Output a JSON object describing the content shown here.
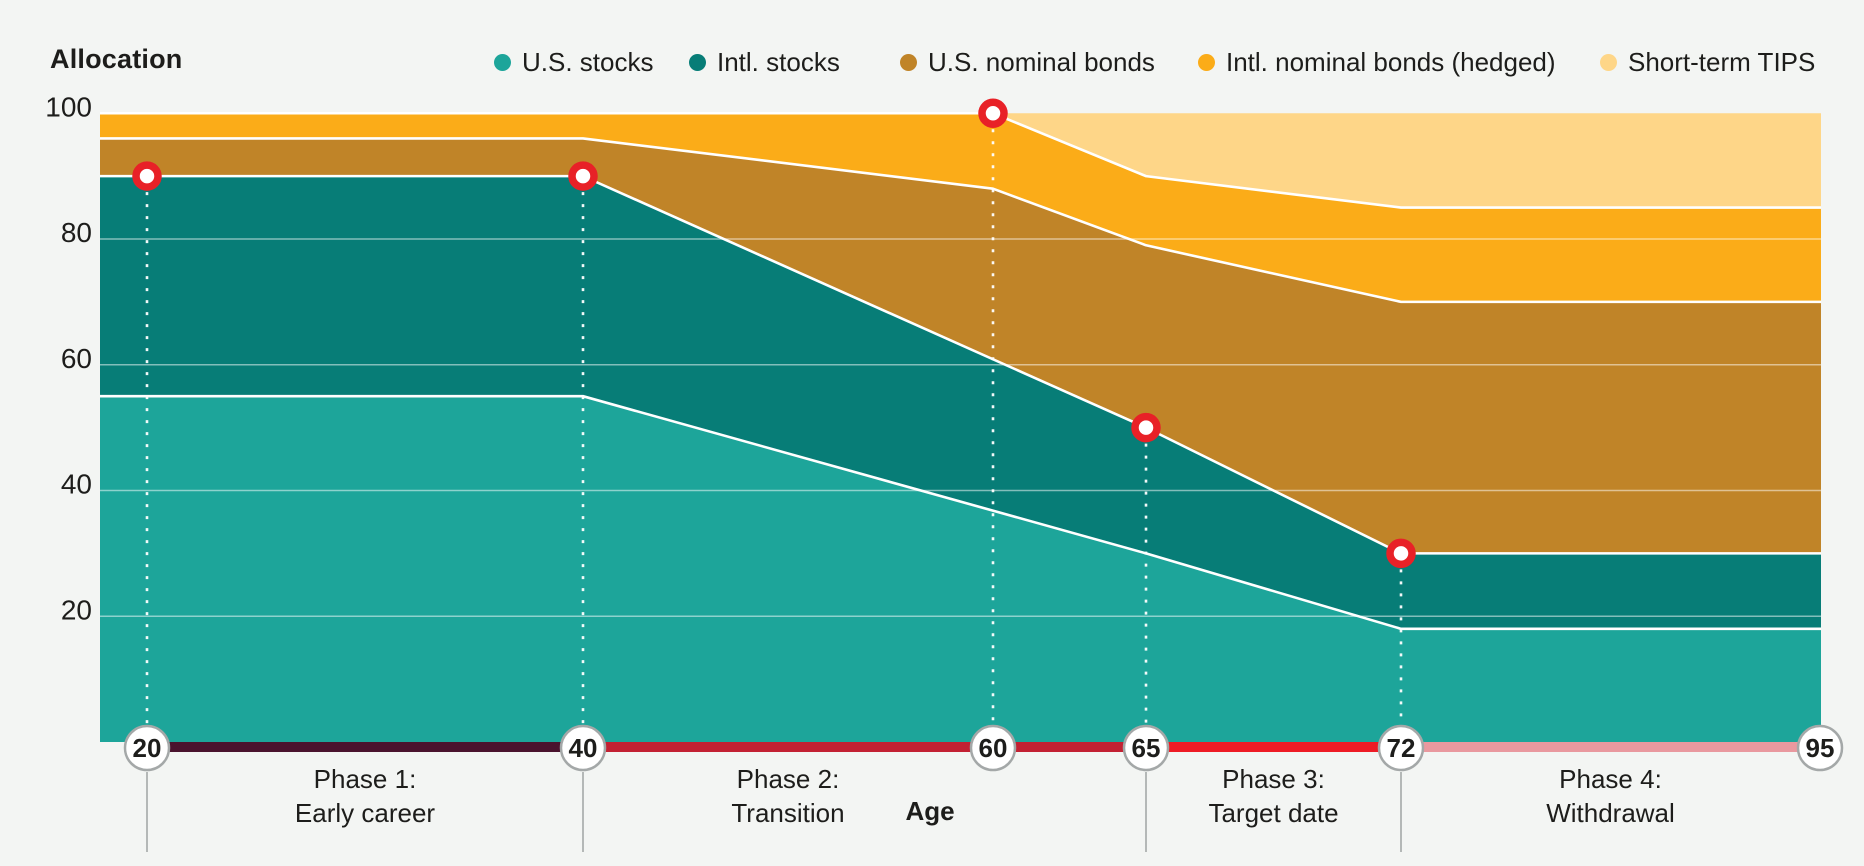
{
  "header": {
    "title": "Allocation"
  },
  "axis": {
    "x_label": "Age",
    "y_ticks": [
      100,
      80,
      60,
      40,
      20
    ],
    "x_circles": [
      "20",
      "40",
      "60",
      "65",
      "72",
      "95"
    ]
  },
  "legend": [
    {
      "label": "U.S. stocks",
      "color": "#1da59a"
    },
    {
      "label": "Intl. stocks",
      "color": "#077d77"
    },
    {
      "label": "U.S. nominal bonds",
      "color": "#c08428"
    },
    {
      "label": "Intl. nominal bonds (hedged)",
      "color": "#fbac18"
    },
    {
      "label": "Short-term TIPS",
      "color": "#fed688"
    }
  ],
  "chart_data": {
    "type": "area",
    "stacked": true,
    "title": "Allocation",
    "xlabel": "Age",
    "ylim": [
      0,
      100
    ],
    "x_ages": [
      20,
      40,
      60,
      65,
      72,
      95
    ],
    "grid": true,
    "legend_position": "top",
    "series": [
      {
        "name": "U.S. stocks",
        "color": "#1da59a",
        "top_boundary": [
          [
            "start",
            55
          ],
          [
            40,
            55
          ],
          [
            65,
            30
          ],
          [
            72,
            18
          ],
          [
            "end",
            18
          ]
        ]
      },
      {
        "name": "Intl. stocks",
        "color": "#077d77",
        "top_boundary": [
          [
            "start",
            90
          ],
          [
            40,
            90
          ],
          [
            65,
            50
          ],
          [
            72,
            30
          ],
          [
            "end",
            30
          ]
        ]
      },
      {
        "name": "U.S. nominal bonds",
        "color": "#c08428",
        "top_boundary": [
          [
            "start",
            96
          ],
          [
            40,
            96
          ],
          [
            60,
            88
          ],
          [
            65,
            79
          ],
          [
            72,
            70
          ],
          [
            "end",
            70
          ]
        ]
      },
      {
        "name": "Intl. nominal bonds (hedged)",
        "color": "#fbac18",
        "top_boundary": [
          [
            "start",
            100
          ],
          [
            60,
            100
          ],
          [
            65,
            90
          ],
          [
            72,
            85
          ],
          [
            "end",
            85
          ]
        ]
      },
      {
        "name": "Short-term TIPS",
        "color": "#fed688",
        "top_boundary": [
          [
            "start",
            100
          ],
          [
            "end",
            100
          ]
        ]
      }
    ],
    "allocations_by_age": {
      "20": {
        "us_stocks": 55,
        "intl_stocks": 35,
        "us_nominal_bonds": 6,
        "intl_nominal_bonds": 4,
        "short_term_tips": 0
      },
      "40": {
        "us_stocks": 55,
        "intl_stocks": 35,
        "us_nominal_bonds": 6,
        "intl_nominal_bonds": 4,
        "short_term_tips": 0
      },
      "60": {
        "us_stocks": 38,
        "intl_stocks": 22,
        "us_nominal_bonds": 28,
        "intl_nominal_bonds": 12,
        "short_term_tips": 0
      },
      "65": {
        "us_stocks": 30,
        "intl_stocks": 20,
        "us_nominal_bonds": 29,
        "intl_nominal_bonds": 11,
        "short_term_tips": 10
      },
      "72": {
        "us_stocks": 18,
        "intl_stocks": 12,
        "us_nominal_bonds": 40,
        "intl_nominal_bonds": 15,
        "short_term_tips": 15
      },
      "95": {
        "us_stocks": 18,
        "intl_stocks": 12,
        "us_nominal_bonds": 40,
        "intl_nominal_bonds": 15,
        "short_term_tips": 15
      }
    },
    "markers": [
      {
        "age": 20,
        "value": 90
      },
      {
        "age": 40,
        "value": 90
      },
      {
        "age": 60,
        "value": 100
      },
      {
        "age": 65,
        "value": 50
      },
      {
        "age": 72,
        "value": 30
      }
    ],
    "phases": [
      {
        "line1": "Phase 1:",
        "line2": "Early career",
        "label_from": 20,
        "label_to": 40,
        "bar_from": 20,
        "bar_to": 40,
        "bar_color": "#4a132e"
      },
      {
        "line1": "Phase 2:",
        "line2": "Transition",
        "label_from": 40,
        "label_to": 60,
        "bar_from": 40,
        "bar_to": 65,
        "bar_color": "#c32133"
      },
      {
        "line1": "Phase 3:",
        "line2": "Target date",
        "label_from": 65,
        "label_to": 72,
        "bar_from": 65,
        "bar_to": 72,
        "bar_color": "#ee1c25"
      },
      {
        "line1": "Phase 4:",
        "line2": "Withdrawal",
        "label_from": 72,
        "label_to": 95,
        "bar_from": 72,
        "bar_to": 95,
        "bar_color": "#e9999f"
      }
    ],
    "ticks_below_ages": [
      20,
      40,
      65,
      72
    ]
  },
  "colors": {
    "background": "#f3f5f3",
    "gridline": "rgba(255,255,255,0.5)",
    "boundary_line": "#ffffff",
    "marker_ring": "#e82127",
    "marker_fill": "#ffffff",
    "axis_circle_border": "#a4a8a8",
    "axis_circle_fill": "#ffffff",
    "tick_line": "#a4a8a8",
    "text": "#1d1d1b"
  }
}
